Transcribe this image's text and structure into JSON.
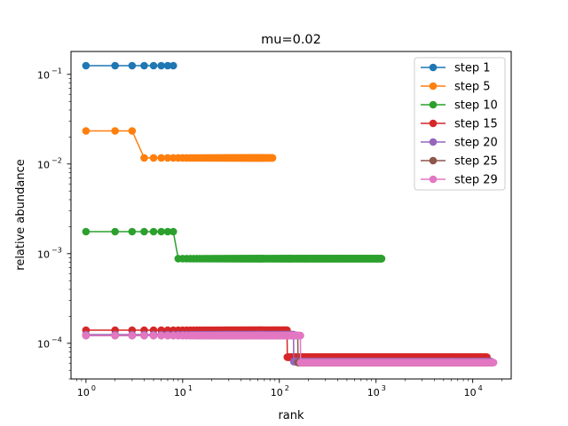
{
  "chart_data": {
    "type": "line",
    "title": "mu=0.02",
    "xlabel": "rank",
    "ylabel": "relative abundance",
    "xscale": "log",
    "yscale": "log",
    "xlim": [
      0.7,
      25000
    ],
    "ylim": [
      4e-05,
      0.18
    ],
    "legend": "top-right",
    "grid": false,
    "x_ticks": [
      {
        "value": 1,
        "base": "10",
        "exp": "0"
      },
      {
        "value": 10,
        "base": "10",
        "exp": "1"
      },
      {
        "value": 100,
        "base": "10",
        "exp": "2"
      },
      {
        "value": 1000,
        "base": "10",
        "exp": "3"
      },
      {
        "value": 10000,
        "base": "10",
        "exp": "4"
      }
    ],
    "y_ticks": [
      {
        "value": 0.0001,
        "base": "10",
        "exp": "−4"
      },
      {
        "value": 0.001,
        "base": "10",
        "exp": "−3"
      },
      {
        "value": 0.01,
        "base": "10",
        "exp": "−2"
      },
      {
        "value": 0.1,
        "base": "10",
        "exp": "−1"
      }
    ],
    "series": [
      {
        "name": "step 1",
        "color": "#1f77b4",
        "segments": [
          {
            "x0": 1,
            "x1": 8,
            "y": 0.125
          }
        ]
      },
      {
        "name": "step 5",
        "color": "#ff7f0e",
        "segments": [
          {
            "x0": 1,
            "x1": 3,
            "y": 0.0234
          },
          {
            "x0": 4,
            "x1": 85,
            "y": 0.0117
          }
        ]
      },
      {
        "name": "step 10",
        "color": "#2ca02c",
        "segments": [
          {
            "x0": 1,
            "x1": 8,
            "y": 0.00176
          },
          {
            "x0": 9,
            "x1": 1140,
            "y": 0.00088
          }
        ]
      },
      {
        "name": "step 15",
        "color": "#d62728",
        "segments": [
          {
            "x0": 1,
            "x1": 120,
            "y": 0.00014
          },
          {
            "x0": 121,
            "x1": 14000,
            "y": 7e-05
          }
        ]
      },
      {
        "name": "step 20",
        "color": "#9467bd",
        "segments": [
          {
            "x0": 1,
            "x1": 140,
            "y": 0.000125
          },
          {
            "x0": 141,
            "x1": 15500,
            "y": 6.25e-05
          }
        ]
      },
      {
        "name": "step 25",
        "color": "#8c564b",
        "segments": [
          {
            "x0": 1,
            "x1": 155,
            "y": 0.000122
          },
          {
            "x0": 156,
            "x1": 16000,
            "y": 6.1e-05
          }
        ]
      },
      {
        "name": "step 29",
        "color": "#e377c2",
        "segments": [
          {
            "x0": 1,
            "x1": 165,
            "y": 0.000122
          },
          {
            "x0": 166,
            "x1": 16400,
            "y": 6.1e-05
          }
        ]
      }
    ]
  }
}
